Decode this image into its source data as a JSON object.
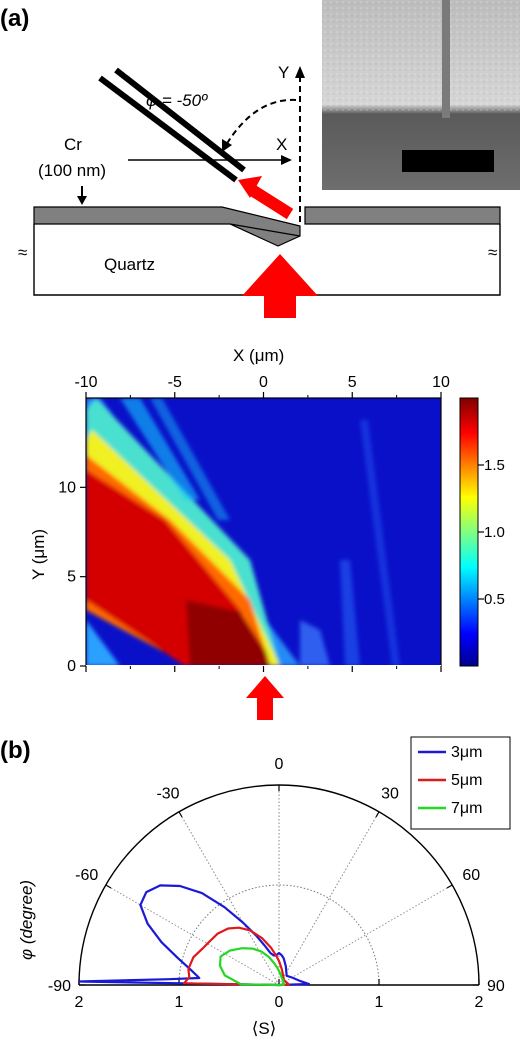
{
  "panel_a": {
    "label": "(a)",
    "angle_label": "φ = -50º",
    "y_label": "Y",
    "x_label": "X",
    "cr_label": "Cr",
    "cr_thickness": "(100 nm)",
    "substrate_label": "Quartz",
    "break_symbol": "≈"
  },
  "panel_b": {
    "label": "(b)"
  },
  "chart_data": [
    {
      "type": "heatmap",
      "title": "",
      "xlabel": "X (μm)",
      "ylabel": "Y (μm)",
      "xlim": [
        -10,
        10
      ],
      "ylim": [
        0,
        15
      ],
      "x_ticks": [
        "-10",
        "-5",
        "0",
        "5",
        "10"
      ],
      "y_ticks": [
        "0",
        "5",
        "10"
      ],
      "colorbar": {
        "ticks": [
          "1.5",
          "1.0",
          "0.5"
        ],
        "range": [
          0,
          2
        ],
        "colormap": "jet"
      }
    },
    {
      "type": "line",
      "subtype": "polar-half",
      "xlabel": "⟨S⟩",
      "ylabel": "φ (degree)",
      "angle_ticks": [
        "-90",
        "-60",
        "-30",
        "0",
        "30",
        "60",
        "90"
      ],
      "radial_ticks": [
        "2",
        "1",
        "0",
        "1",
        "2"
      ],
      "radial_max": 2,
      "legend_position": "top-right",
      "series": [
        {
          "name": "3μm",
          "color": "#1a1ad6",
          "points": [
            [
              -89,
              2.0
            ],
            [
              -87,
              1.1
            ],
            [
              -85,
              0.8
            ],
            [
              -80,
              0.9
            ],
            [
              -75,
              1.05
            ],
            [
              -70,
              1.25
            ],
            [
              -65,
              1.45
            ],
            [
              -60,
              1.6
            ],
            [
              -55,
              1.62
            ],
            [
              -50,
              1.55
            ],
            [
              -45,
              1.4
            ],
            [
              -40,
              1.2
            ],
            [
              -35,
              0.95
            ],
            [
              -30,
              0.72
            ],
            [
              -25,
              0.55
            ],
            [
              -20,
              0.42
            ],
            [
              -15,
              0.33
            ],
            [
              -10,
              0.3
            ],
            [
              -5,
              0.3
            ],
            [
              0,
              0.32
            ],
            [
              5,
              0.3
            ],
            [
              10,
              0.27
            ],
            [
              20,
              0.2
            ],
            [
              40,
              0.12
            ],
            [
              60,
              0.15
            ],
            [
              80,
              0.22
            ],
            [
              88,
              0.3
            ]
          ]
        },
        {
          "name": "5μm",
          "color": "#e01818",
          "points": [
            [
              -89,
              0.95
            ],
            [
              -85,
              0.9
            ],
            [
              -80,
              0.92
            ],
            [
              -72,
              0.9
            ],
            [
              -65,
              0.85
            ],
            [
              -58,
              0.82
            ],
            [
              -50,
              0.8
            ],
            [
              -42,
              0.76
            ],
            [
              -35,
              0.7
            ],
            [
              -28,
              0.62
            ],
            [
              -20,
              0.5
            ],
            [
              -12,
              0.38
            ],
            [
              -6,
              0.3
            ],
            [
              0,
              0.24
            ],
            [
              10,
              0.16
            ],
            [
              25,
              0.1
            ],
            [
              45,
              0.07
            ],
            [
              70,
              0.08
            ],
            [
              88,
              0.1
            ]
          ]
        },
        {
          "name": "7μm",
          "color": "#22d822",
          "points": [
            [
              -89,
              0.38
            ],
            [
              -80,
              0.55
            ],
            [
              -72,
              0.62
            ],
            [
              -64,
              0.65
            ],
            [
              -55,
              0.6
            ],
            [
              -45,
              0.52
            ],
            [
              -36,
              0.45
            ],
            [
              -28,
              0.38
            ],
            [
              -20,
              0.3
            ],
            [
              -12,
              0.22
            ],
            [
              -5,
              0.17
            ],
            [
              5,
              0.12
            ],
            [
              20,
              0.08
            ],
            [
              45,
              0.06
            ],
            [
              70,
              0.05
            ],
            [
              88,
              0.05
            ]
          ]
        }
      ]
    }
  ]
}
